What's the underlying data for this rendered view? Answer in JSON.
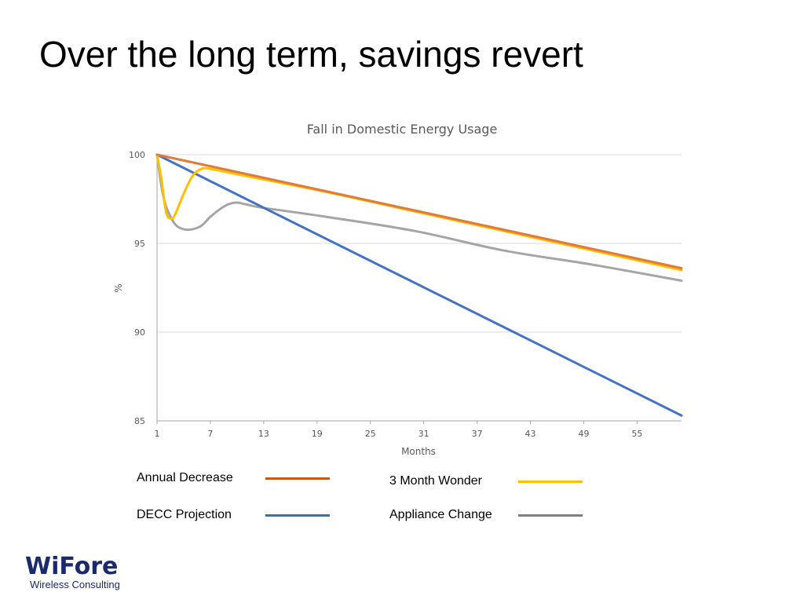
{
  "slide": {
    "title": "Over the long term, savings revert"
  },
  "logo": {
    "name": "WiFore",
    "tagline": "Wireless Consulting",
    "color": "#1b2a6b"
  },
  "chart_data": {
    "type": "line",
    "title": "Fall in Domestic Energy Usage",
    "xlabel": "Months",
    "ylabel": "%",
    "xlim": [
      1,
      60
    ],
    "ylim": [
      85,
      100
    ],
    "xticks": [
      1,
      7,
      13,
      19,
      25,
      31,
      37,
      43,
      49,
      55
    ],
    "yticks": [
      85,
      90,
      95,
      100
    ],
    "grid": true,
    "legend_position": "bottom",
    "series": [
      {
        "name": "Annual Decrease",
        "color": "#e07b39",
        "x": [
          1,
          60
        ],
        "y": [
          100,
          93.6
        ]
      },
      {
        "name": "3 Month Wonder",
        "color": "#ffc000",
        "x": [
          1,
          1.5,
          2,
          2.5,
          3,
          4,
          5,
          6,
          7,
          10,
          20,
          30,
          40,
          50,
          60
        ],
        "y": [
          100,
          98.6,
          96.8,
          96.4,
          96.6,
          97.8,
          98.8,
          99.2,
          99.2,
          98.9,
          97.9,
          96.8,
          95.7,
          94.6,
          93.5
        ]
      },
      {
        "name": "DECC Projection",
        "color": "#4472c4",
        "x": [
          1,
          60
        ],
        "y": [
          100,
          85.3
        ]
      },
      {
        "name": "Appliance Change",
        "color": "#a5a5a5",
        "x": [
          1,
          1.5,
          2,
          3,
          4,
          5,
          6,
          7,
          8,
          9,
          10,
          11,
          13,
          20,
          30,
          40,
          50,
          60
        ],
        "y": [
          100,
          98.2,
          97.1,
          96.1,
          95.8,
          95.8,
          96.0,
          96.5,
          96.9,
          97.2,
          97.3,
          97.2,
          97.0,
          96.5,
          95.7,
          94.6,
          93.8,
          92.9
        ]
      }
    ]
  }
}
